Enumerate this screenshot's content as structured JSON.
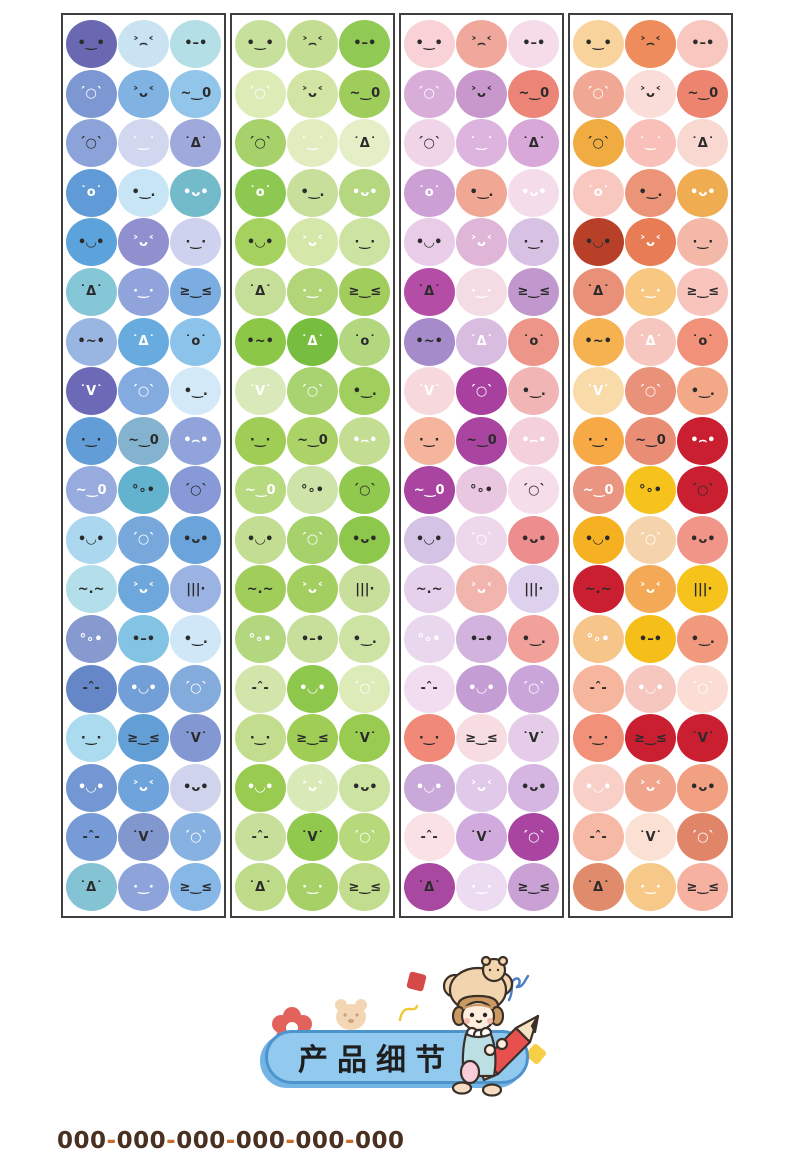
{
  "sheets": {
    "rows": 18,
    "cols": 3,
    "strip_border_color": "#3f3f3f",
    "ink_dark": "#2b2b2b",
    "ink_white": "#ffffff",
    "glyphs": {
      "smile": "•‿•",
      "upset": "˃⌢˂",
      "flat": "•–•",
      "blush-wink": "´○`",
      "wink": "˃ᴗ˂",
      "wink-o": "~‿0",
      "soft-smile": "˙‿˙",
      "gasp": "˙Δ˙",
      "tiny-o": "˙o˙",
      "smirk": "•‿.",
      "grin": "•ᴗ•",
      "happy": "•◡•",
      "dot-smile": "·‿·",
      "big-wink": "≥‿≤",
      "squiggle": "•~•",
      "chick": "˙V˙",
      "sad-flat": "•⌢•",
      "sprinkle": "°∘•",
      "tally": "|||·",
      "sleepy": "~.~",
      "wince": "-ˆ-"
    },
    "expressions": [
      "smile",
      "upset",
      "flat",
      "blush-wink",
      "wink",
      "wink-o",
      "blush-wink",
      "soft-smile",
      "gasp",
      "tiny-o",
      "smirk",
      "grin",
      "happy",
      "wink",
      "dot-smile",
      "gasp",
      "dot-smile",
      "big-wink",
      "squiggle",
      "gasp",
      "tiny-o",
      "chick",
      "blush-wink",
      "smirk",
      "dot-smile",
      "wink-o",
      "sad-flat",
      "wink-o",
      "sprinkle",
      "blush-wink",
      "happy",
      "blush-wink",
      "grin",
      "sleepy",
      "wink",
      "tally",
      "sprinkle",
      "flat",
      "smirk",
      "wince",
      "happy",
      "blush-wink",
      "dot-smile",
      "big-wink",
      "chick",
      "happy",
      "wink",
      "grin",
      "wince",
      "chick",
      "blush-wink",
      "gasp",
      "dot-smile",
      "big-wink"
    ],
    "ink_pattern": [
      "d",
      "d",
      "d",
      "w",
      "d",
      "d",
      "d",
      "w",
      "d",
      "w",
      "d",
      "w",
      "d",
      "w",
      "d",
      "d",
      "w",
      "d",
      "d",
      "w",
      "d",
      "w",
      "w",
      "d",
      "d",
      "d",
      "w",
      "w",
      "d",
      "d",
      "d",
      "w",
      "d",
      "d",
      "w",
      "d",
      "w",
      "d",
      "d",
      "d",
      "w",
      "w",
      "d",
      "d",
      "d",
      "w",
      "w",
      "d",
      "d",
      "d",
      "w",
      "d",
      "w",
      "d"
    ],
    "strips": [
      {
        "name": "blue",
        "colors": [
          "#6a68b0",
          "#c9e3f3",
          "#b5dfe6",
          "#7c97d1",
          "#80b2e2",
          "#91c5ea",
          "#8ba3d9",
          "#d0d7ef",
          "#a0a9db",
          "#619bd7",
          "#c7e5f5",
          "#73bbca",
          "#5ca2db",
          "#9190cf",
          "#ced2ef",
          "#85c7d7",
          "#90a3db",
          "#7bade1",
          "#99b6e3",
          "#67abdf",
          "#8bc3eb",
          "#6c6ab7",
          "#83abdf",
          "#d3e9f7",
          "#629dd7",
          "#83b3cf",
          "#90a3db",
          "#97abdf",
          "#63b3cf",
          "#879ad7",
          "#abd7ef",
          "#77a7db",
          "#6ba3db",
          "#b3dfea",
          "#6ea7db",
          "#9bb3e3",
          "#879acf",
          "#83c3e3",
          "#cfe7f7",
          "#6587c7",
          "#729fd7",
          "#83abdb",
          "#abdbef",
          "#629fd7",
          "#8397d3",
          "#7397d3",
          "#6ea3db",
          "#cfd3eb",
          "#769bd7",
          "#8397cf",
          "#87b1e1",
          "#83c3d3",
          "#8fa3db",
          "#87b7e7"
        ]
      },
      {
        "name": "green",
        "colors": [
          "#c7e19d",
          "#c3dd93",
          "#91c955",
          "#ddebb7",
          "#d3e5a5",
          "#9fcd5b",
          "#a7d16b",
          "#e1edbf",
          "#e5efc7",
          "#8dc951",
          "#c7df9b",
          "#b5d77f",
          "#a5d15f",
          "#d5e7a9",
          "#cde3a1",
          "#c5df99",
          "#b1d577",
          "#a1cd5d",
          "#8dc747",
          "#77bd3f",
          "#b3d77f",
          "#d9e9b9",
          "#a9d371",
          "#a1cf5d",
          "#9fcd55",
          "#abd367",
          "#c3dd93",
          "#b7d97f",
          "#cde3a7",
          "#91c94f",
          "#c3dd93",
          "#a7d16b",
          "#8dc74b",
          "#a1cd5b",
          "#a3cf61",
          "#c7df9b",
          "#b3d77f",
          "#c7df9b",
          "#cde3a3",
          "#d3e5ab",
          "#8dc74b",
          "#ddebb9",
          "#c3dd8f",
          "#9fcd55",
          "#99cb51",
          "#99cb51",
          "#d9e9b7",
          "#cde3a1",
          "#c7df9b",
          "#91c94f",
          "#b7d97b",
          "#bddb89",
          "#a7d167",
          "#c3dd8f"
        ]
      },
      {
        "name": "pink-purple",
        "colors": [
          "#f8d2d6",
          "#f0a89c",
          "#f6dce9",
          "#d8aed8",
          "#c898cc",
          "#ec8478",
          "#f0d4e8",
          "#ddb4de",
          "#d8a8d8",
          "#cda0d5",
          "#f0a894",
          "#f4dcea",
          "#e8cce8",
          "#e0b6d8",
          "#d8c2e4",
          "#b44da6",
          "#f4dce4",
          "#c098ce",
          "#a58bc9",
          "#d9bde1",
          "#ed9589",
          "#f7d9dd",
          "#a940a0",
          "#f1b5b5",
          "#f5b59d",
          "#a944a1",
          "#f4d0dc",
          "#a944a1",
          "#e9c7e1",
          "#f5dde9",
          "#d5c3e5",
          "#edd7eb",
          "#ed8d8d",
          "#e5d1eb",
          "#f1b5ad",
          "#ded1ed",
          "#e9d7ed",
          "#d1b3dd",
          "#f1a199",
          "#f1ddef",
          "#c59dd5",
          "#c9a5d9",
          "#f18979",
          "#f7dde1",
          "#e5cde9",
          "#c9a9d9",
          "#e1c9e9",
          "#d5b5e1",
          "#f9e1e5",
          "#d1abdd",
          "#a944a1",
          "#a948a1",
          "#eddbf1",
          "#c9a1d5"
        ]
      },
      {
        "name": "orange-red",
        "colors": [
          "#f8d49c",
          "#ee8c5c",
          "#f8c8c0",
          "#f0a894",
          "#fadcd8",
          "#ec8470",
          "#f0ac40",
          "#f8c0b8",
          "#f8d8d0",
          "#f8c8c0",
          "#ec9478",
          "#f0ac50",
          "#b84028",
          "#e87c54",
          "#f4b8a8",
          "#e89078",
          "#f8c882",
          "#f8c4bc",
          "#f6b151",
          "#f6c7bf",
          "#f19179",
          "#f9daa9",
          "#e99179",
          "#f3a987",
          "#f6a945",
          "#e98d75",
          "#c91f31",
          "#e99581",
          "#f6c31d",
          "#c91f31",
          "#f6b122",
          "#f6d4ab",
          "#f19589",
          "#c91f31",
          "#f3a955",
          "#f6c31d",
          "#f6c589",
          "#f6be19",
          "#f1997d",
          "#f6b59d",
          "#f6c7bf",
          "#fbddd5",
          "#f19179",
          "#c91f31",
          "#c91f31",
          "#f9d0c7",
          "#f1a58d",
          "#f1a181",
          "#f6b9a5",
          "#fbe1d3",
          "#e18569",
          "#e18b6d",
          "#f6c989",
          "#f6b1a1"
        ]
      }
    ]
  },
  "banner": {
    "label": "产品细节",
    "pill_color": "#92c9ef",
    "pill_border_color": "#4e94cc",
    "decorations": [
      "flower",
      "bear-face",
      "yellow-squiggle",
      "red-square",
      "girl-with-pencil",
      "blue-squiggle",
      "yellow-diamond"
    ]
  },
  "footer": {
    "code": "000-000-000-000-000-000",
    "text_color": "#4a3020",
    "dash_color": "#cc6a2a"
  }
}
